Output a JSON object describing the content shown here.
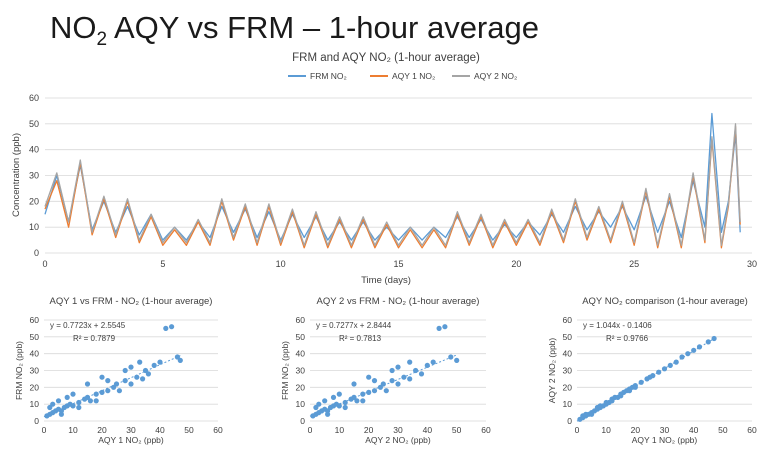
{
  "slide_title": {
    "pre": "NO",
    "sub": "2",
    "post": " AQY vs FRM – 1-hour average"
  },
  "chart_data": [
    {
      "type": "line",
      "title": "FRM and AQY NO₂ (1-hour average)",
      "xlabel": "Time (days)",
      "ylabel": "Concentration (ppb)",
      "xlim": [
        0,
        30
      ],
      "ylim": [
        0,
        60
      ],
      "xticks": [
        0,
        5,
        10,
        15,
        20,
        25,
        30
      ],
      "yticks": [
        0,
        10,
        20,
        30,
        40,
        50,
        60
      ],
      "grid": true,
      "legend_position": "top",
      "x": [
        0,
        0.5,
        1.0,
        1.5,
        2.0,
        2.5,
        3.0,
        3.5,
        4.0,
        4.5,
        5.0,
        5.5,
        6.0,
        6.5,
        7.0,
        7.5,
        8.0,
        8.5,
        9.0,
        9.5,
        10.0,
        10.5,
        11.0,
        11.5,
        12.0,
        12.5,
        13.0,
        13.5,
        14.0,
        14.5,
        15.0,
        15.5,
        16.0,
        16.5,
        17.0,
        17.5,
        18.0,
        18.5,
        19.0,
        19.5,
        20.0,
        20.5,
        21.0,
        21.5,
        22.0,
        22.5,
        23.0,
        23.5,
        24.0,
        24.5,
        25.0,
        25.5,
        26.0,
        26.5,
        27.0,
        27.5,
        28.0,
        28.3,
        28.7,
        29.0,
        29.3,
        29.5
      ],
      "series": [
        {
          "name": "FRM  NO₂",
          "color": "#5b9bd5",
          "values": [
            15,
            30,
            12,
            34,
            9,
            20,
            8,
            18,
            7,
            15,
            5,
            10,
            5,
            12,
            6,
            18,
            8,
            17,
            6,
            16,
            5,
            15,
            6,
            14,
            5,
            12,
            5,
            12,
            5,
            10,
            5,
            10,
            5,
            10,
            6,
            14,
            6,
            13,
            5,
            11,
            6,
            12,
            7,
            15,
            8,
            18,
            9,
            16,
            10,
            18,
            9,
            22,
            8,
            20,
            6,
            28,
            10,
            54,
            8,
            20,
            46,
            8
          ]
        },
        {
          "name": "AQY 1 NO₂",
          "color": "#ed7d31",
          "values": [
            17,
            28,
            10,
            35,
            7,
            21,
            6,
            20,
            4,
            14,
            3,
            9,
            3,
            12,
            3,
            20,
            5,
            18,
            3,
            18,
            3,
            16,
            2,
            15,
            2,
            13,
            2,
            13,
            2,
            11,
            2,
            9,
            2,
            9,
            2,
            15,
            3,
            14,
            2,
            12,
            3,
            12,
            3,
            16,
            4,
            20,
            5,
            17,
            4,
            19,
            3,
            24,
            2,
            22,
            2,
            30,
            4,
            44,
            2,
            18,
            49,
            11
          ]
        },
        {
          "name": "AQY 2 NO₂",
          "color": "#a5a5a5",
          "values": [
            18,
            31,
            12,
            36,
            8,
            22,
            7,
            21,
            5,
            15,
            4,
            10,
            4,
            13,
            4,
            21,
            6,
            19,
            4,
            19,
            4,
            17,
            3,
            16,
            3,
            14,
            3,
            14,
            3,
            12,
            3,
            10,
            3,
            10,
            3,
            16,
            4,
            15,
            3,
            13,
            4,
            13,
            4,
            17,
            5,
            21,
            6,
            18,
            5,
            20,
            4,
            25,
            3,
            23,
            3,
            31,
            5,
            45,
            3,
            19,
            50,
            12
          ]
        }
      ]
    },
    {
      "type": "scatter",
      "title": "AQY 1 vs FRM - NO₂ (1-hour average)",
      "xlabel": "AQY 1 NO₂ (ppb)",
      "ylabel": "FRM NO₂ (ppb)",
      "xlim": [
        0,
        60
      ],
      "ylim": [
        0,
        60
      ],
      "xticks": [
        0,
        10,
        20,
        30,
        40,
        50,
        60
      ],
      "yticks": [
        0,
        10,
        20,
        30,
        40,
        50,
        60
      ],
      "grid": true,
      "equation": "y = 0.7723x + 2.5545",
      "r_squared": "R² = 0.7879",
      "trendline": {
        "slope": 0.7723,
        "intercept": 2.5545
      },
      "series": [
        {
          "color": "#5b9bd5",
          "points": [
            [
              1,
              3
            ],
            [
              2,
              4
            ],
            [
              3,
              5
            ],
            [
              4,
              6
            ],
            [
              5,
              7
            ],
            [
              6,
              6
            ],
            [
              7,
              8
            ],
            [
              8,
              9
            ],
            [
              9,
              10
            ],
            [
              10,
              9
            ],
            [
              12,
              11
            ],
            [
              14,
              13
            ],
            [
              15,
              14
            ],
            [
              16,
              12
            ],
            [
              18,
              16
            ],
            [
              20,
              17
            ],
            [
              22,
              18
            ],
            [
              24,
              20
            ],
            [
              25,
              22
            ],
            [
              26,
              18
            ],
            [
              28,
              24
            ],
            [
              30,
              22
            ],
            [
              32,
              26
            ],
            [
              34,
              25
            ],
            [
              35,
              30
            ],
            [
              36,
              28
            ],
            [
              38,
              33
            ],
            [
              40,
              35
            ],
            [
              42,
              55
            ],
            [
              44,
              56
            ],
            [
              46,
              38
            ],
            [
              47,
              36
            ],
            [
              3,
              10
            ],
            [
              5,
              12
            ],
            [
              8,
              14
            ],
            [
              10,
              16
            ],
            [
              2,
              8
            ],
            [
              6,
              4
            ],
            [
              12,
              8
            ],
            [
              18,
              12
            ],
            [
              20,
              26
            ],
            [
              15,
              22
            ],
            [
              22,
              24
            ],
            [
              28,
              30
            ],
            [
              30,
              32
            ],
            [
              33,
              35
            ]
          ]
        }
      ]
    },
    {
      "type": "scatter",
      "title": "AQY 2 vs FRM - NO₂ (1-hour average)",
      "xlabel": "AQY 2 NO₂ (ppb)",
      "ylabel": "FRM NO₂ (ppb)",
      "xlim": [
        0,
        60
      ],
      "ylim": [
        0,
        60
      ],
      "xticks": [
        0,
        10,
        20,
        30,
        40,
        50,
        60
      ],
      "yticks": [
        0,
        10,
        20,
        30,
        40,
        50,
        60
      ],
      "grid": true,
      "equation": "y = 0.7277x + 2.8444",
      "r_squared": "R² = 0.7813",
      "trendline": {
        "slope": 0.7277,
        "intercept": 2.8444
      },
      "series": [
        {
          "color": "#5b9bd5",
          "points": [
            [
              1,
              3
            ],
            [
              2,
              4
            ],
            [
              3,
              5
            ],
            [
              4,
              6
            ],
            [
              5,
              7
            ],
            [
              6,
              6
            ],
            [
              7,
              8
            ],
            [
              8,
              9
            ],
            [
              9,
              10
            ],
            [
              10,
              9
            ],
            [
              12,
              11
            ],
            [
              14,
              13
            ],
            [
              15,
              14
            ],
            [
              16,
              12
            ],
            [
              18,
              16
            ],
            [
              20,
              17
            ],
            [
              22,
              18
            ],
            [
              24,
              20
            ],
            [
              25,
              22
            ],
            [
              26,
              18
            ],
            [
              28,
              24
            ],
            [
              30,
              22
            ],
            [
              32,
              26
            ],
            [
              34,
              25
            ],
            [
              36,
              30
            ],
            [
              38,
              28
            ],
            [
              40,
              33
            ],
            [
              42,
              35
            ],
            [
              44,
              55
            ],
            [
              46,
              56
            ],
            [
              48,
              38
            ],
            [
              50,
              36
            ],
            [
              3,
              10
            ],
            [
              5,
              12
            ],
            [
              8,
              14
            ],
            [
              10,
              16
            ],
            [
              2,
              8
            ],
            [
              6,
              4
            ],
            [
              12,
              8
            ],
            [
              18,
              12
            ],
            [
              20,
              26
            ],
            [
              15,
              22
            ],
            [
              22,
              24
            ],
            [
              28,
              30
            ],
            [
              30,
              32
            ],
            [
              34,
              35
            ]
          ]
        }
      ]
    },
    {
      "type": "scatter",
      "title": "AQY NO₂ comparison (1-hour average)",
      "xlabel": "AQY 1 NO₂ (ppb)",
      "ylabel": "AQY 2 NO₂ (ppb)",
      "xlim": [
        0,
        60
      ],
      "ylim": [
        0,
        60
      ],
      "xticks": [
        0,
        10,
        20,
        30,
        40,
        50,
        60
      ],
      "yticks": [
        0,
        10,
        20,
        30,
        40,
        50,
        60
      ],
      "grid": true,
      "equation": "y = 1.044x - 0.1406",
      "r_squared": "R² = 0.9766",
      "trendline": {
        "slope": 1.044,
        "intercept": -0.1406
      },
      "series": [
        {
          "color": "#5b9bd5",
          "points": [
            [
              1,
              1
            ],
            [
              2,
              2
            ],
            [
              3,
              3
            ],
            [
              4,
              4
            ],
            [
              5,
              5
            ],
            [
              6,
              6
            ],
            [
              7,
              7
            ],
            [
              8,
              9
            ],
            [
              9,
              9
            ],
            [
              10,
              10
            ],
            [
              11,
              11
            ],
            [
              12,
              13
            ],
            [
              13,
              14
            ],
            [
              14,
              14
            ],
            [
              15,
              16
            ],
            [
              16,
              17
            ],
            [
              17,
              18
            ],
            [
              18,
              19
            ],
            [
              19,
              20
            ],
            [
              20,
              21
            ],
            [
              22,
              23
            ],
            [
              24,
              25
            ],
            [
              25,
              26
            ],
            [
              26,
              27
            ],
            [
              28,
              29
            ],
            [
              30,
              31
            ],
            [
              32,
              33
            ],
            [
              34,
              35
            ],
            [
              36,
              38
            ],
            [
              38,
              40
            ],
            [
              40,
              42
            ],
            [
              42,
              44
            ],
            [
              45,
              47
            ],
            [
              47,
              49
            ],
            [
              3,
              4
            ],
            [
              5,
              4
            ],
            [
              7,
              8
            ],
            [
              10,
              11
            ],
            [
              12,
              12
            ],
            [
              15,
              15
            ],
            [
              20,
              20
            ],
            [
              18,
              18
            ],
            [
              8,
              8
            ],
            [
              2,
              3
            ]
          ]
        }
      ]
    }
  ]
}
